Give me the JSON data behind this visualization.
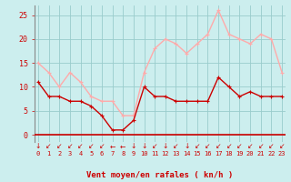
{
  "x": [
    0,
    1,
    2,
    3,
    4,
    5,
    6,
    7,
    8,
    9,
    10,
    11,
    12,
    13,
    14,
    15,
    16,
    17,
    18,
    19,
    20,
    21,
    22,
    23
  ],
  "wind_avg": [
    11,
    8,
    8,
    7,
    7,
    6,
    4,
    1,
    1,
    3,
    10,
    8,
    8,
    7,
    7,
    7,
    7,
    12,
    10,
    8,
    9,
    8,
    8,
    8
  ],
  "wind_gust": [
    15,
    13,
    10,
    13,
    11,
    8,
    7,
    7,
    4,
    4,
    13,
    18,
    20,
    19,
    17,
    19,
    21,
    26,
    21,
    20,
    19,
    21,
    20,
    13
  ],
  "color_avg": "#cc0000",
  "color_gust": "#ffaaaa",
  "bg_color": "#cceeee",
  "grid_color": "#99cccc",
  "xlabel": "Vent moyen/en rafales ( kn/h )",
  "xlabel_color": "#cc0000",
  "yticks": [
    0,
    5,
    10,
    15,
    20,
    25
  ],
  "ylim": [
    -1.5,
    27
  ],
  "xlim": [
    -0.3,
    23.3
  ],
  "marker_size": 2.5,
  "line_width": 1.0,
  "tick_label_color": "#cc0000",
  "arrow_color": "#cc0000",
  "spine_color": "#888888"
}
